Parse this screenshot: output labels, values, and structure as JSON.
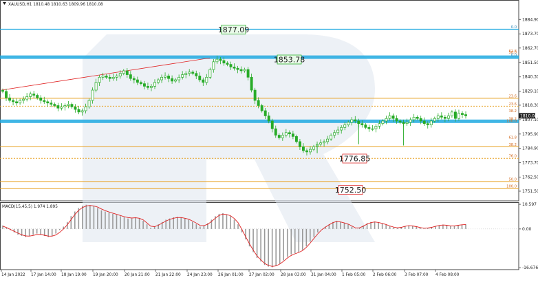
{
  "window": {
    "symbol_header": "XAUUSD,H1  1810.48 1810.63 1809.96 1810.08",
    "indicator_header": "MACD(15,45,5) 1.974 1.895",
    "current_price": "1810.08"
  },
  "colors": {
    "background": "#ffffff",
    "grid": "#eeeeee",
    "candle": "#27ab27",
    "fib_orange": "#e8a020",
    "blue_band": "#1fa9e0",
    "trend_red": "#e02020",
    "macd_hist": "#999999",
    "macd_signal": "#e02020",
    "watermark": "#dfe5ee",
    "green_label_bg": "#eafbea",
    "green_label_border": "#2eaf2e",
    "red_label_border": "#e03030"
  },
  "chart_data": [
    {
      "type": "candlestick",
      "symbol": "XAUUSD",
      "timeframe": "H1",
      "title": "XAUUSD,H1",
      "ylim": [
        1744.0,
        1900.0
      ],
      "grid": false,
      "y_ticks": [
        "1884.90",
        "1873.70",
        "1862.70",
        "1851.50",
        "1840.30",
        "1829.10",
        "1818.30",
        "1807.10",
        "1795.90",
        "1784.90",
        "1773.70",
        "1762.50",
        "1751.50"
      ],
      "x_ticks": [
        "14 Jan 2022",
        "17 Jan 14:00",
        "18 Jan 19:00",
        "19 Jan 20:00",
        "20 Jan 21:00",
        "21 Jan 22:00",
        "24 Jan 23:00",
        "26 Jan 01:00",
        "27 Jan 02:00",
        "28 Jan 03:00",
        "31 Jan 04:00",
        "1 Feb 05:00",
        "2 Feb 06:00",
        "3 Feb 07:00",
        "4 Feb 08:00"
      ],
      "fib_levels": [
        {
          "label": "0.0",
          "price": 1877.3,
          "color": "blue"
        },
        {
          "label": "61.8",
          "price": 1858.7,
          "color": "orange"
        },
        {
          "label": "50.0",
          "price": 1857.4,
          "color": "orange"
        },
        {
          "label": "0.0",
          "price": 1855.6,
          "color": "blue"
        },
        {
          "label": "23.6",
          "price": 1823.7,
          "color": "orange"
        },
        {
          "label": "23.6",
          "price": 1817.5,
          "color": "orange"
        },
        {
          "label": "38.2",
          "price": 1812.0,
          "color": "orange"
        },
        {
          "label": "38.2",
          "price": 1806.0,
          "color": "orange"
        },
        {
          "label": "100.0",
          "price": 1804.5,
          "color": "orange"
        },
        {
          "label": "61.8",
          "price": 1791.5,
          "color": "orange"
        },
        {
          "label": "38.2",
          "price": 1786.0,
          "color": "orange"
        },
        {
          "label": "76.0",
          "price": 1777.0,
          "color": "orange"
        },
        {
          "label": "50.0",
          "price": 1759.0,
          "color": "orange"
        },
        {
          "label": "100.0",
          "price": 1753.5,
          "color": "orange"
        }
      ],
      "horizontal_lines": [
        {
          "price": 1877.3,
          "style": "blue"
        },
        {
          "price": 1855.6,
          "style": "blue-band"
        },
        {
          "price": 1805.8,
          "style": "blue-band"
        },
        {
          "price": 1823.7,
          "style": "orange"
        },
        {
          "price": 1817.5,
          "style": "orange-dotted"
        },
        {
          "price": 1786.0,
          "style": "orange"
        },
        {
          "price": 1777.0,
          "style": "orange-dotted"
        },
        {
          "price": 1759.0,
          "style": "orange"
        },
        {
          "price": 1753.5,
          "style": "orange"
        }
      ],
      "trend_line": {
        "from_price": 1830.0,
        "to_price": 1855.0
      },
      "annotations": [
        {
          "text": "1877.09",
          "price": 1877.09,
          "kind": "green"
        },
        {
          "text": "1853.78",
          "price": 1853.78,
          "kind": "green"
        },
        {
          "text": "1776.85",
          "price": 1776.85,
          "kind": "red"
        },
        {
          "text": "1752.50",
          "price": 1752.5,
          "kind": "red"
        }
      ],
      "price_series": [
        1829,
        1824,
        1822,
        1821,
        1820,
        1822,
        1823,
        1825,
        1827,
        1826,
        1824,
        1822,
        1821,
        1820,
        1819,
        1818,
        1816,
        1817,
        1818,
        1819,
        1817,
        1815,
        1813,
        1814,
        1817,
        1822,
        1830,
        1836,
        1840,
        1841,
        1840,
        1839,
        1840,
        1841,
        1843,
        1845,
        1842,
        1839,
        1838,
        1836,
        1835,
        1833,
        1832,
        1833,
        1836,
        1838,
        1840,
        1841,
        1839,
        1837,
        1838,
        1840,
        1842,
        1843,
        1844,
        1843,
        1841,
        1838,
        1836,
        1840,
        1846,
        1852,
        1854,
        1853,
        1851,
        1850,
        1848,
        1847,
        1846,
        1845,
        1846,
        1840,
        1830,
        1822,
        1818,
        1814,
        1810,
        1806,
        1800,
        1795,
        1793,
        1795,
        1797,
        1796,
        1794,
        1790,
        1786,
        1783,
        1782,
        1784,
        1786,
        1788,
        1789,
        1790,
        1792,
        1795,
        1797,
        1799,
        1801,
        1803,
        1805,
        1807,
        1806,
        1804,
        1803,
        1801,
        1800,
        1800,
        1802,
        1804,
        1806,
        1808,
        1810,
        1808,
        1806,
        1805,
        1804,
        1805,
        1807,
        1809,
        1808,
        1806,
        1804,
        1803,
        1806,
        1808,
        1810,
        1809,
        1808,
        1810,
        1813,
        1808,
        1812,
        1811,
        1810
      ]
    },
    {
      "type": "bar",
      "title": "MACD(15,45,5) 1.974 1.895",
      "ylim": [
        -17.5,
        11.5
      ],
      "y_ticks": [
        "10.597",
        "0.00",
        "-16.676"
      ],
      "series": [
        {
          "kind": "histogram",
          "values": [
            1.5,
            0.5,
            -0.5,
            -1.5,
            -2.5,
            -3,
            -3.5,
            -3,
            -2.5,
            -2,
            -2.5,
            -3,
            -3.5,
            -3,
            -2,
            -0.5,
            1,
            3,
            5.5,
            7.5,
            9,
            10,
            10.4,
            10.2,
            9.8,
            9,
            8,
            7.5,
            7,
            6.5,
            6,
            5.5,
            5,
            4.5,
            4.5,
            5,
            4.5,
            3.5,
            2,
            0.5,
            1,
            2,
            3,
            4,
            4.5,
            5,
            5.2,
            5,
            4.5,
            4,
            3,
            2,
            1,
            1.5,
            2.5,
            4,
            5.5,
            6.5,
            6.8,
            6.2,
            5.5,
            4,
            2,
            -1.5,
            -4.5,
            -7.5,
            -10,
            -12.5,
            -14,
            -15.5,
            -16.2,
            -16.5,
            -16,
            -15,
            -13.5,
            -12,
            -11,
            -10.5,
            -10,
            -9,
            -7.5,
            -5.5,
            -3.5,
            -1.5,
            0,
            1,
            2,
            3,
            3.5,
            3,
            2.5,
            2,
            1,
            0,
            0.5,
            1.5,
            2.5,
            3,
            3.2,
            2.8,
            2.3,
            1.8,
            1.2,
            0.6,
            0.4,
            0.8,
            1.2,
            1.5,
            1.4,
            1,
            0.5,
            0.2,
            0.4,
            0.8,
            1.2,
            1.6,
            1.8,
            1.6,
            1.2,
            1.4,
            1.7,
            1.9,
            2
          ]
        },
        {
          "kind": "signal",
          "values": [
            1.2,
            0.6,
            -0.2,
            -1,
            -1.8,
            -2.5,
            -3,
            -3.1,
            -2.8,
            -2.4,
            -2.4,
            -2.7,
            -3.1,
            -3.1,
            -2.6,
            -1.5,
            0,
            1.8,
            4,
            6.2,
            8,
            9.2,
            9.9,
            10.1,
            9.9,
            9.4,
            8.6,
            7.9,
            7.3,
            6.8,
            6.3,
            5.8,
            5.3,
            4.9,
            4.7,
            4.8,
            4.6,
            3.9,
            2.6,
            1.2,
            1,
            1.6,
            2.5,
            3.4,
            4.1,
            4.6,
            4.9,
            4.9,
            4.6,
            4.2,
            3.4,
            2.5,
            1.5,
            1.4,
            2,
            3.2,
            4.6,
            5.8,
            6.4,
            6.2,
            5.7,
            4.5,
            2.7,
            -0.2,
            -3.3,
            -6.4,
            -9.1,
            -11.6,
            -13.3,
            -14.8,
            -15.7,
            -16.1,
            -15.9,
            -15.1,
            -13.9,
            -12.5,
            -11.4,
            -10.7,
            -10.1,
            -9.3,
            -7.9,
            -6.1,
            -4.1,
            -2.1,
            -0.4,
            0.8,
            1.8,
            2.7,
            3.2,
            3,
            2.6,
            2.1,
            1.3,
            0.4,
            0.5,
            1.2,
            2.1,
            2.7,
            3,
            2.8,
            2.4,
            1.9,
            1.3,
            0.8,
            0.5,
            0.7,
            1.1,
            1.4,
            1.3,
            1,
            0.6,
            0.3,
            0.4,
            0.7,
            1.1,
            1.5,
            1.7,
            1.6,
            1.3,
            1.3,
            1.6,
            1.8,
            1.9
          ]
        }
      ]
    }
  ]
}
